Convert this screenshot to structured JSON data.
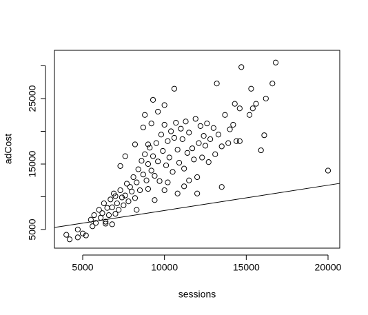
{
  "chart_data": {
    "type": "scatter",
    "xlabel": "sessions",
    "ylabel": "adCost",
    "xlim": [
      3273,
      20716
    ],
    "ylim": [
      2158,
      32368
    ],
    "xticks": [
      5000,
      10000,
      15000,
      20000
    ],
    "yticks": [
      5000,
      15000,
      25000
    ],
    "yminor_ticks": [
      10000,
      20000,
      30000
    ],
    "color": "#000000",
    "abline": {
      "intercept": 4050,
      "slope": 0.386
    },
    "x": [
      20000,
      16800,
      14700,
      16600,
      13200,
      10600,
      15300,
      16200,
      9300,
      15600,
      14300,
      15400,
      14600,
      15200,
      16100,
      15900,
      13500,
      4000,
      4200,
      4700,
      5000,
      4700,
      5200,
      5600,
      5500,
      5700,
      5800,
      6000,
      6100,
      6200,
      6300,
      6400,
      6500,
      6600,
      6700,
      6800,
      6900,
      7000,
      7100,
      7200,
      7300,
      7400,
      7500,
      7600,
      7700,
      7800,
      7900,
      8000,
      8100,
      8200,
      8300,
      8400,
      8500,
      8600,
      8700,
      8800,
      8900,
      9000,
      9100,
      9200,
      9300,
      9400,
      9500,
      9600,
      9700,
      9800,
      9900,
      10000,
      10100,
      10200,
      10300,
      10400,
      10500,
      10600,
      10700,
      10800,
      10900,
      11000,
      11100,
      11200,
      11300,
      11400,
      11500,
      11700,
      11800,
      11900,
      12000,
      12100,
      12200,
      12300,
      12400,
      12500,
      12600,
      12700,
      12800,
      13000,
      13100,
      13300,
      13500,
      13700,
      13900,
      14000,
      14200,
      14400,
      14600,
      8800,
      9600,
      10000,
      7300,
      7600,
      8200,
      9400,
      10000,
      10800,
      11500,
      12000,
      6400,
      6800,
      7000,
      8300,
      9000,
      10200,
      11200,
      8700,
      9000,
      9200
    ],
    "y": [
      14000,
      30500,
      29800,
      27300,
      27300,
      26500,
      26500,
      25000,
      24800,
      24200,
      24200,
      23500,
      23500,
      22500,
      19400,
      17100,
      11500,
      4200,
      3500,
      3800,
      4400,
      5000,
      4100,
      5500,
      6500,
      7200,
      6000,
      8000,
      6800,
      7500,
      9000,
      5900,
      8300,
      7200,
      9600,
      8400,
      10500,
      7400,
      9000,
      8000,
      11000,
      9900,
      8700,
      10200,
      12000,
      9300,
      11500,
      10800,
      13000,
      9800,
      12200,
      14200,
      11000,
      15500,
      13400,
      16500,
      12500,
      15000,
      17500,
      14000,
      16200,
      13200,
      18200,
      15400,
      12400,
      19500,
      17000,
      21000,
      14800,
      18500,
      16000,
      20000,
      13800,
      19000,
      21300,
      17200,
      15200,
      20400,
      18800,
      14300,
      21500,
      16700,
      19800,
      17400,
      15700,
      21900,
      13000,
      18200,
      20800,
      16000,
      19300,
      17800,
      21200,
      15300,
      18800,
      20500,
      16500,
      19500,
      17700,
      22500,
      18200,
      20300,
      21000,
      18500,
      18500,
      22500,
      23000,
      24000,
      14700,
      16200,
      18000,
      9500,
      11000,
      10500,
      12500,
      10500,
      6200,
      5800,
      10100,
      8000,
      11200,
      12200,
      11600,
      20600,
      18000,
      21200
    ]
  }
}
